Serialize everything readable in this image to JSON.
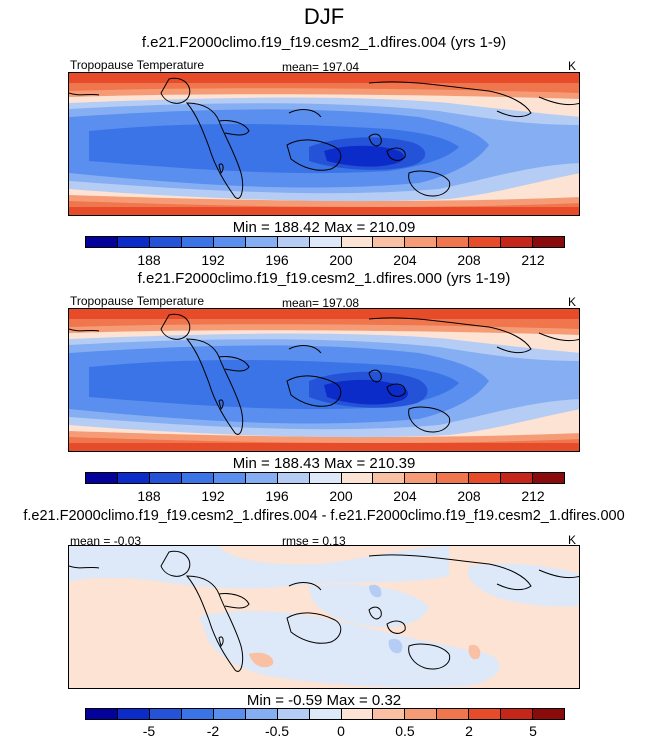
{
  "title": "DJF",
  "colors": {
    "abs_palette": [
      "#03029a",
      "#0b2cc9",
      "#2553d8",
      "#3b74e6",
      "#5a8ff0",
      "#86aef2",
      "#b5cdf5",
      "#dde8f8",
      "#fde3d4",
      "#f9c0a4",
      "#f59c77",
      "#ef764d",
      "#e64b2a",
      "#c4271a",
      "#8a0b0b"
    ],
    "diff_palette": [
      "#03029a",
      "#0b2cc9",
      "#2553d8",
      "#3b74e6",
      "#5a8ff0",
      "#86aef2",
      "#b5cdf5",
      "#dde8f8",
      "#fde3d4",
      "#f9c0a4",
      "#f59c77",
      "#ef764d",
      "#e64b2a",
      "#c4271a",
      "#8a0b0b"
    ]
  },
  "panels": [
    {
      "subtitle": "f.e21.F2000climo.f19_f19.cesm2_1.dfires.004 (yrs 1-9)",
      "left_label": "Tropopause Temperature",
      "center_label": "mean= 197.04",
      "right_label": "K",
      "stats": "Min = 188.42 Max = 210.09",
      "ticks": [
        "188",
        "192",
        "196",
        "200",
        "204",
        "208",
        "212"
      ]
    },
    {
      "subtitle": "f.e21.F2000climo.f19_f19.cesm2_1.dfires.000 (yrs 1-19)",
      "left_label": "Tropopause Temperature",
      "center_label": "mean= 197.08",
      "right_label": "K",
      "stats": "Min = 188.43 Max = 210.39",
      "ticks": [
        "188",
        "192",
        "196",
        "200",
        "204",
        "208",
        "212"
      ]
    },
    {
      "subtitle": "f.e21.F2000climo.f19_f19.cesm2_1.dfires.004 - f.e21.F2000climo.f19_f19.cesm2_1.dfires.000",
      "left_label": "mean =  -0.03",
      "center_label": "rmse =   0.13",
      "right_label": "K",
      "stats": "Min =  -0.59 Max =   0.32",
      "ticks": [
        "-5",
        "-2",
        "-0.5",
        "0",
        "0.5",
        "2",
        "5"
      ]
    }
  ]
}
